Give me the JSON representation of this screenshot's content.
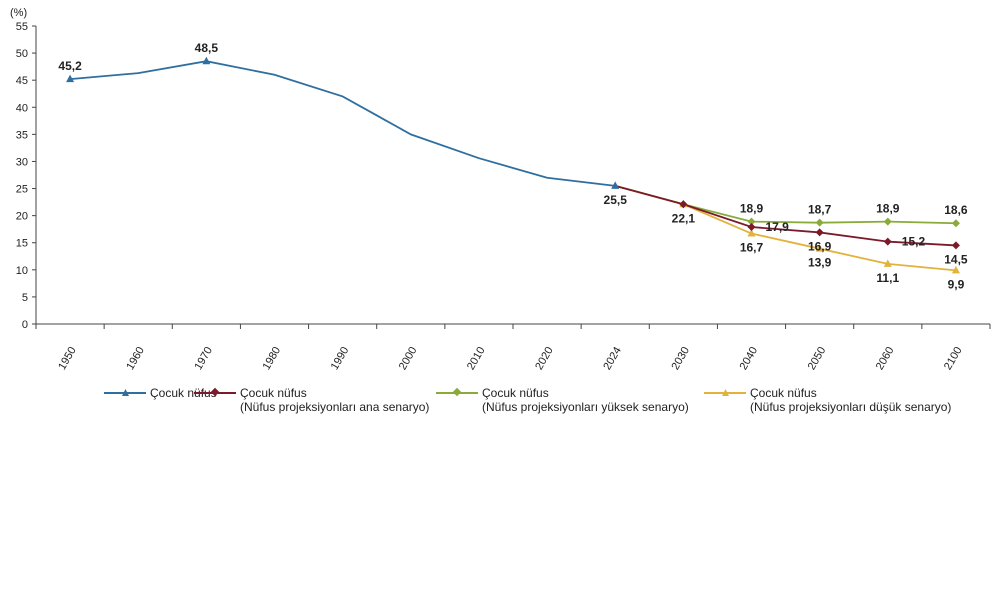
{
  "chart_data": {
    "type": "line",
    "ylabel": "(%)",
    "ylim": [
      0,
      55
    ],
    "ytick_step": 5,
    "grid": false,
    "x_categories": [
      "1950",
      "1960",
      "1970",
      "1980",
      "1990",
      "2000",
      "2010",
      "2020",
      "2024",
      "2030",
      "2040",
      "2050",
      "2060",
      "2100"
    ],
    "series": [
      {
        "name": "Çocuk nüfus",
        "name_line2": "",
        "color": "#2f6f9f",
        "marker": "triangle",
        "values": [
          45.2,
          46.3,
          48.5,
          46.0,
          42.0,
          35.0,
          30.6,
          27.0,
          25.5,
          null,
          null,
          null,
          null,
          null
        ],
        "labels": [
          {
            "i": 0,
            "text": "45,2",
            "pos": "above"
          },
          {
            "i": 2,
            "text": "48,5",
            "pos": "above"
          },
          {
            "i": 8,
            "text": "25,5",
            "pos": "below"
          }
        ]
      },
      {
        "name": "Çocuk nüfus",
        "name_line2": "(Nüfus projeksiyonları ana senaryo)",
        "color": "#7b1a2a",
        "marker": "diamond",
        "values": [
          null,
          null,
          null,
          null,
          null,
          null,
          null,
          null,
          25.5,
          22.1,
          17.9,
          16.9,
          15.2,
          14.5
        ],
        "labels": [
          {
            "i": 9,
            "text": "22,1",
            "pos": "below"
          },
          {
            "i": 10,
            "text": "17,9",
            "pos": "right"
          },
          {
            "i": 11,
            "text": "16,9",
            "pos": "below"
          },
          {
            "i": 12,
            "text": "15,2",
            "pos": "right"
          },
          {
            "i": 13,
            "text": "14,5",
            "pos": "below"
          }
        ]
      },
      {
        "name": "Çocuk nüfus",
        "name_line2": "(Nüfus projeksiyonları yüksek senaryo)",
        "color": "#8aaa3a",
        "marker": "diamond",
        "values": [
          null,
          null,
          null,
          null,
          null,
          null,
          null,
          null,
          25.5,
          22.1,
          18.9,
          18.7,
          18.9,
          18.6
        ],
        "labels": [
          {
            "i": 10,
            "text": "18,9",
            "pos": "above"
          },
          {
            "i": 11,
            "text": "18,7",
            "pos": "above"
          },
          {
            "i": 12,
            "text": "18,9",
            "pos": "above"
          },
          {
            "i": 13,
            "text": "18,6",
            "pos": "above"
          }
        ]
      },
      {
        "name": "Çocuk nüfus",
        "name_line2": "(Nüfus projeksiyonları düşük senaryo)",
        "color": "#e3b23c",
        "marker": "triangle",
        "values": [
          null,
          null,
          null,
          null,
          null,
          null,
          null,
          null,
          25.5,
          22.1,
          16.7,
          13.9,
          11.1,
          9.9
        ],
        "labels": [
          {
            "i": 10,
            "text": "16,7",
            "pos": "below"
          },
          {
            "i": 11,
            "text": "13,9",
            "pos": "below"
          },
          {
            "i": 12,
            "text": "11,1",
            "pos": "below"
          },
          {
            "i": 13,
            "text": "9,9",
            "pos": "below"
          }
        ]
      }
    ]
  }
}
